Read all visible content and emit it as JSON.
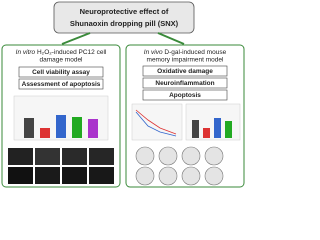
{
  "header": {
    "title_line1": "Neuroprotective effect of",
    "title_line2": "Shunaoxin dropping pill (SNX)"
  },
  "left": {
    "heading_italic": "In vitro",
    "heading_rest": "H₂O₂-induced PC12 cell",
    "heading_line2": "damage model",
    "items": [
      "Cell viability assay",
      "Assessment of apoptosis"
    ]
  },
  "right": {
    "heading_italic": "In vivo",
    "heading_rest": "D-gal-induced mouse",
    "heading_line2": "memory impairment model",
    "items": [
      "Oxidative damage",
      "Neuroinflammation",
      "Apoptosis"
    ]
  }
}
